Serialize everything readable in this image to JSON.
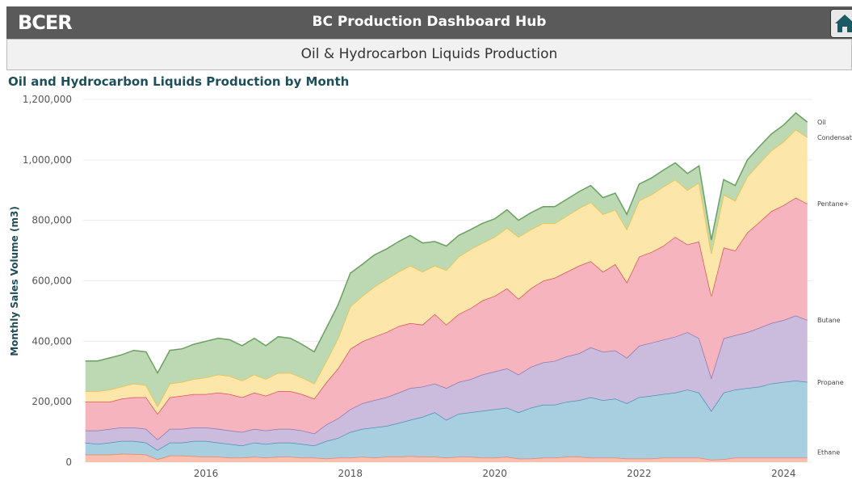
{
  "header": {
    "logo": "BCER",
    "title": "BC Production Dashboard Hub"
  },
  "subheader": {
    "title": "Oil & Hydrocarbon Liquids Production"
  },
  "chart_data": {
    "type": "stacked_area",
    "title": "Oil and Hydrocarbon Liquids Production by Month",
    "y_label": "Monthly Sales Volume (m3)",
    "x": [
      2014.33,
      2014.5,
      2014.67,
      2014.83,
      2015.0,
      2015.17,
      2015.33,
      2015.5,
      2015.67,
      2015.83,
      2016.0,
      2016.17,
      2016.33,
      2016.5,
      2016.67,
      2016.83,
      2017.0,
      2017.17,
      2017.33,
      2017.5,
      2017.67,
      2017.83,
      2018.0,
      2018.17,
      2018.33,
      2018.5,
      2018.67,
      2018.83,
      2019.0,
      2019.17,
      2019.33,
      2019.5,
      2019.67,
      2019.83,
      2020.0,
      2020.17,
      2020.33,
      2020.5,
      2020.67,
      2020.83,
      2021.0,
      2021.17,
      2021.33,
      2021.5,
      2021.67,
      2021.83,
      2022.0,
      2022.17,
      2022.33,
      2022.5,
      2022.67,
      2022.83,
      2023.0,
      2023.17,
      2023.33,
      2023.5,
      2023.67,
      2023.83,
      2024.0,
      2024.17,
      2024.33
    ],
    "xlim": [
      2014.3,
      2024.4
    ],
    "xticks": [
      2016,
      2018,
      2020,
      2022,
      2024
    ],
    "ylim": [
      0,
      1200000
    ],
    "yticks": [
      0,
      {
        "value": 200000,
        "label": "200,000"
      },
      {
        "value": 400000,
        "label": "400,000"
      },
      {
        "value": 600000,
        "label": "600,000"
      },
      {
        "value": 800000,
        "label": "800,000"
      },
      {
        "value": 1000000,
        "label": "1,000,000"
      },
      {
        "value": 1200000,
        "label": "1,200,000"
      }
    ],
    "grid": true,
    "series": [
      {
        "name": "Ethane",
        "color": "#f08060",
        "values": [
          25000,
          25000,
          25000,
          28000,
          27000,
          25000,
          10000,
          22000,
          22000,
          20000,
          18000,
          18000,
          15000,
          15000,
          18000,
          15000,
          18000,
          18000,
          15000,
          15000,
          12000,
          15000,
          15000,
          18000,
          15000,
          18000,
          18000,
          20000,
          18000,
          18000,
          15000,
          18000,
          18000,
          15000,
          15000,
          18000,
          12000,
          12000,
          15000,
          15000,
          18000,
          18000,
          15000,
          15000,
          15000,
          12000,
          12000,
          12000,
          15000,
          15000,
          15000,
          15000,
          8000,
          10000,
          15000,
          15000,
          15000,
          15000,
          15000,
          15000,
          15000
        ]
      },
      {
        "name": "Propane",
        "color": "#4a90b8",
        "values": [
          40000,
          35000,
          40000,
          42000,
          43000,
          40000,
          30000,
          43000,
          43000,
          50000,
          52000,
          47000,
          45000,
          40000,
          47000,
          45000,
          47000,
          47000,
          45000,
          40000,
          58000,
          65000,
          85000,
          92000,
          100000,
          102000,
          112000,
          120000,
          132000,
          147000,
          125000,
          142000,
          147000,
          155000,
          160000,
          162000,
          153000,
          168000,
          175000,
          175000,
          182000,
          187000,
          200000,
          190000,
          195000,
          183000,
          203000,
          208000,
          210000,
          215000,
          225000,
          215000,
          162000,
          220000,
          225000,
          230000,
          235000,
          245000,
          250000,
          255000,
          250000
        ]
      },
      {
        "name": "Butane",
        "color": "#8878b8",
        "values": [
          40000,
          45000,
          45000,
          45000,
          45000,
          45000,
          35000,
          45000,
          45000,
          45000,
          45000,
          45000,
          45000,
          45000,
          45000,
          45000,
          45000,
          45000,
          45000,
          40000,
          55000,
          65000,
          75000,
          85000,
          90000,
          95000,
          100000,
          105000,
          100000,
          95000,
          105000,
          105000,
          110000,
          120000,
          125000,
          130000,
          125000,
          135000,
          140000,
          145000,
          150000,
          155000,
          165000,
          160000,
          160000,
          150000,
          170000,
          175000,
          180000,
          185000,
          190000,
          180000,
          110000,
          180000,
          180000,
          185000,
          195000,
          200000,
          205000,
          215000,
          205000
        ]
      },
      {
        "name": "Pentane+",
        "color": "#e0505a",
        "values": [
          95000,
          95000,
          90000,
          95000,
          100000,
          105000,
          85000,
          105000,
          110000,
          110000,
          110000,
          120000,
          120000,
          115000,
          120000,
          115000,
          125000,
          125000,
          120000,
          115000,
          140000,
          165000,
          200000,
          205000,
          210000,
          215000,
          220000,
          215000,
          205000,
          230000,
          210000,
          225000,
          235000,
          245000,
          250000,
          265000,
          250000,
          260000,
          270000,
          275000,
          280000,
          290000,
          285000,
          265000,
          285000,
          250000,
          295000,
          300000,
          310000,
          330000,
          290000,
          320000,
          270000,
          300000,
          280000,
          330000,
          350000,
          370000,
          380000,
          390000,
          385000
        ]
      },
      {
        "name": "Condensate",
        "color": "#f0c040",
        "values": [
          35000,
          35000,
          40000,
          40000,
          45000,
          40000,
          25000,
          45000,
          45000,
          50000,
          55000,
          60000,
          60000,
          55000,
          60000,
          55000,
          60000,
          60000,
          55000,
          50000,
          70000,
          100000,
          140000,
          150000,
          165000,
          175000,
          180000,
          190000,
          175000,
          160000,
          180000,
          190000,
          195000,
          190000,
          195000,
          200000,
          205000,
          195000,
          190000,
          180000,
          185000,
          190000,
          195000,
          190000,
          180000,
          175000,
          185000,
          190000,
          195000,
          190000,
          180000,
          195000,
          140000,
          175000,
          165000,
          185000,
          195000,
          200000,
          210000,
          225000,
          220000
        ]
      },
      {
        "name": "Oil",
        "color": "#6aa060",
        "values": [
          100000,
          100000,
          105000,
          105000,
          110000,
          110000,
          110000,
          110000,
          110000,
          115000,
          120000,
          120000,
          120000,
          115000,
          120000,
          110000,
          120000,
          115000,
          110000,
          105000,
          110000,
          110000,
          110000,
          105000,
          105000,
          100000,
          100000,
          100000,
          95000,
          80000,
          80000,
          70000,
          65000,
          65000,
          60000,
          60000,
          55000,
          55000,
          55000,
          55000,
          55000,
          55000,
          55000,
          55000,
          55000,
          50000,
          55000,
          55000,
          55000,
          55000,
          55000,
          55000,
          45000,
          50000,
          50000,
          55000,
          55000,
          55000,
          55000,
          55000,
          50000
        ]
      }
    ]
  }
}
